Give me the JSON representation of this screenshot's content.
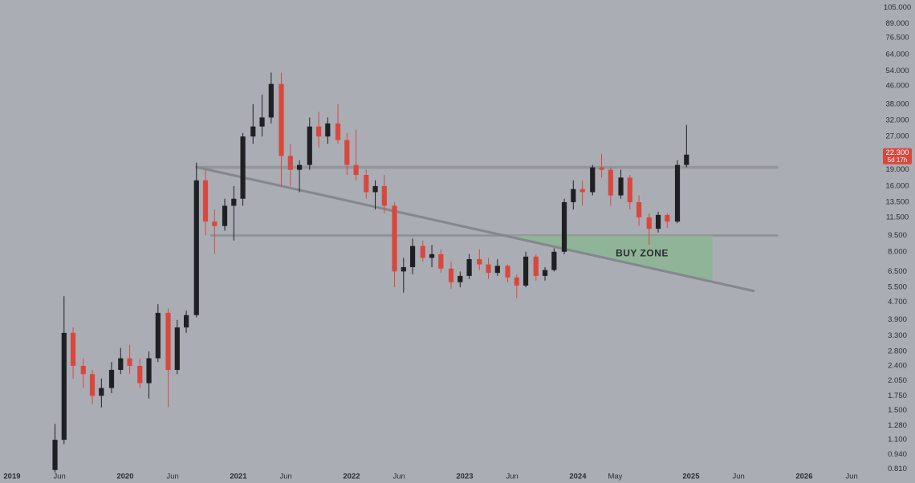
{
  "chart_data": {
    "type": "candlestick",
    "y_scale": "log",
    "up_color": "#1f2024",
    "down_color": "#d9473d",
    "x": [
      2019.38,
      2019.46,
      2019.54,
      2019.63,
      2019.71,
      2019.79,
      2019.88,
      2019.96,
      2020.04,
      2020.13,
      2020.21,
      2020.29,
      2020.38,
      2020.46,
      2020.54,
      2020.63,
      2020.71,
      2020.79,
      2020.88,
      2020.96,
      2021.04,
      2021.13,
      2021.21,
      2021.29,
      2021.38,
      2021.46,
      2021.54,
      2021.63,
      2021.71,
      2021.79,
      2021.88,
      2021.96,
      2022.04,
      2022.13,
      2022.21,
      2022.29,
      2022.38,
      2022.46,
      2022.54,
      2022.63,
      2022.71,
      2022.79,
      2022.88,
      2022.96,
      2023.04,
      2023.13,
      2023.21,
      2023.29,
      2023.38,
      2023.46,
      2023.54,
      2023.63,
      2023.71,
      2023.79,
      2023.88,
      2023.96,
      2024.04,
      2024.13,
      2024.21,
      2024.29,
      2024.38,
      2024.46,
      2024.54,
      2024.63,
      2024.71,
      2024.79,
      2024.88,
      2024.96
    ],
    "open": [
      0.8,
      1.1,
      3.4,
      2.4,
      2.2,
      1.75,
      1.9,
      2.3,
      2.6,
      2.4,
      2.0,
      2.6,
      4.2,
      2.3,
      3.6,
      4.1,
      17,
      11,
      10.5,
      13,
      14,
      27,
      30,
      33,
      47,
      22,
      19,
      20,
      30,
      27,
      31,
      26,
      20,
      18,
      15,
      16,
      13,
      6.5,
      6.8,
      8.5,
      7.5,
      7.8,
      6.7,
      5.8,
      6.2,
      7.4,
      7.0,
      6.4,
      6.9,
      6.1,
      5.6,
      7.6,
      6.2,
      6.6,
      8.0,
      13.5,
      15.5,
      15,
      19.5,
      19,
      14.5,
      17.5,
      13.5,
      11.5,
      10.2,
      11.8,
      11,
      20
    ],
    "high": [
      1.3,
      5.0,
      3.6,
      2.6,
      2.3,
      2.1,
      2.5,
      2.9,
      3.0,
      2.6,
      2.8,
      4.6,
      4.4,
      3.9,
      4.3,
      20.5,
      19,
      12.5,
      14,
      16,
      28,
      38,
      42,
      53,
      53,
      25,
      21,
      33,
      35,
      33,
      38,
      28,
      29,
      19,
      17,
      18,
      13.5,
      7.5,
      9.2,
      9.0,
      8.6,
      8.2,
      7.2,
      6.5,
      7.8,
      8.2,
      7.5,
      7.4,
      7.0,
      6.3,
      8.0,
      7.8,
      6.8,
      8.3,
      14,
      17,
      17,
      20,
      22.5,
      19.5,
      19,
      18,
      14.5,
      12,
      12.2,
      12,
      21,
      30.5
    ],
    "low": [
      0.78,
      1.05,
      2.1,
      1.9,
      1.6,
      1.55,
      1.8,
      2.2,
      2.2,
      1.9,
      1.7,
      2.5,
      1.55,
      2.2,
      3.4,
      4.0,
      9.5,
      7.8,
      10,
      9,
      13,
      25,
      27,
      31,
      16,
      16,
      15,
      19,
      24,
      25,
      25,
      18,
      17,
      14,
      12.5,
      12,
      5.5,
      5.2,
      6.3,
      7.2,
      6.8,
      6.4,
      5.4,
      5.5,
      6.0,
      6.6,
      6.0,
      6.2,
      5.8,
      4.9,
      5.5,
      5.9,
      5.9,
      6.5,
      7.8,
      12.5,
      13,
      14.5,
      17.5,
      13,
      14,
      12.5,
      10.5,
      8.6,
      9.8,
      10.3,
      10.8,
      19.5
    ],
    "close": [
      1.1,
      3.4,
      2.4,
      2.2,
      1.75,
      1.9,
      2.3,
      2.6,
      2.4,
      2.0,
      2.6,
      4.2,
      2.3,
      3.6,
      4.1,
      17,
      11,
      10.5,
      13,
      14,
      27,
      30,
      33,
      47,
      22,
      19,
      20,
      30,
      27,
      31,
      26,
      20,
      18,
      15,
      16,
      13,
      6.5,
      6.8,
      8.5,
      7.5,
      7.8,
      6.7,
      5.8,
      6.2,
      7.4,
      7.0,
      6.4,
      6.9,
      6.1,
      5.6,
      7.6,
      6.2,
      6.6,
      8.0,
      13.5,
      15.5,
      15,
      19.5,
      19,
      14.5,
      17.5,
      13.5,
      11.5,
      10.2,
      11.8,
      11,
      20,
      22.3
    ],
    "xlim": [
      2018.894,
      2026.66
    ],
    "xticks": [
      {
        "value": 2019,
        "label": "2019"
      },
      {
        "value": 2019.42,
        "label": "Jun"
      },
      {
        "value": 2020,
        "label": "2020"
      },
      {
        "value": 2020.42,
        "label": "Jun"
      },
      {
        "value": 2021,
        "label": "2021"
      },
      {
        "value": 2021.42,
        "label": "Jun"
      },
      {
        "value": 2022,
        "label": "2022"
      },
      {
        "value": 2022.42,
        "label": "Jun"
      },
      {
        "value": 2023,
        "label": "2023"
      },
      {
        "value": 2023.42,
        "label": "Jun"
      },
      {
        "value": 2024,
        "label": "2024"
      },
      {
        "value": 2024.33,
        "label": "May"
      },
      {
        "value": 2025,
        "label": "2025"
      },
      {
        "value": 2025.42,
        "label": "Jun"
      },
      {
        "value": 2026,
        "label": "2026"
      },
      {
        "value": 2026.42,
        "label": "Jun"
      }
    ],
    "ylim": [
      0.785,
      114
    ],
    "yticks": [
      {
        "value": 105,
        "label": "105.000"
      },
      {
        "value": 89,
        "label": "89.000"
      },
      {
        "value": 76.5,
        "label": "76.500"
      },
      {
        "value": 64,
        "label": "64.000"
      },
      {
        "value": 54,
        "label": "54.000"
      },
      {
        "value": 46,
        "label": "46.000"
      },
      {
        "value": 38,
        "label": "38.000"
      },
      {
        "value": 32,
        "label": "32.000"
      },
      {
        "value": 27,
        "label": "27.000"
      },
      {
        "value": 19,
        "label": "19.000"
      },
      {
        "value": 16,
        "label": "16.000"
      },
      {
        "value": 13.5,
        "label": "13.500"
      },
      {
        "value": 11.5,
        "label": "11.500"
      },
      {
        "value": 9.5,
        "label": "9.500"
      },
      {
        "value": 8,
        "label": "8.000"
      },
      {
        "value": 6.5,
        "label": "6.500"
      },
      {
        "value": 5.5,
        "label": "5.500"
      },
      {
        "value": 4.7,
        "label": "4.700"
      },
      {
        "value": 3.9,
        "label": "3.900"
      },
      {
        "value": 3.3,
        "label": "3.300"
      },
      {
        "value": 2.8,
        "label": "2.800"
      },
      {
        "value": 2.4,
        "label": "2.400"
      },
      {
        "value": 2.05,
        "label": "2.050"
      },
      {
        "value": 1.75,
        "label": "1.750"
      },
      {
        "value": 1.5,
        "label": "1.500"
      },
      {
        "value": 1.28,
        "label": "1.280"
      },
      {
        "value": 1.1,
        "label": "1.100"
      },
      {
        "value": 0.94,
        "label": "0.940"
      },
      {
        "value": 0.81,
        "label": "0.810"
      }
    ],
    "last_price": {
      "value": 22.3,
      "label": "22.300"
    },
    "countdown": "5d 17h",
    "resistance_band": {
      "x": [
        2020.62,
        2025.77
      ],
      "y": [
        19.2,
        19.8
      ],
      "color": "#8e9097"
    },
    "support_line": {
      "x": [
        2020.75,
        2025.77
      ],
      "y": 9.5,
      "color": "#8e9097"
    },
    "trendline": {
      "x": [
        2020.62,
        2025.56
      ],
      "y": [
        19.6,
        5.28
      ],
      "color": "#85878e"
    },
    "buy_zone": {
      "label": "BUY ZONE",
      "x": [
        2023.36,
        2025.19
      ],
      "top": 9.5,
      "color": "#8db593"
    }
  }
}
